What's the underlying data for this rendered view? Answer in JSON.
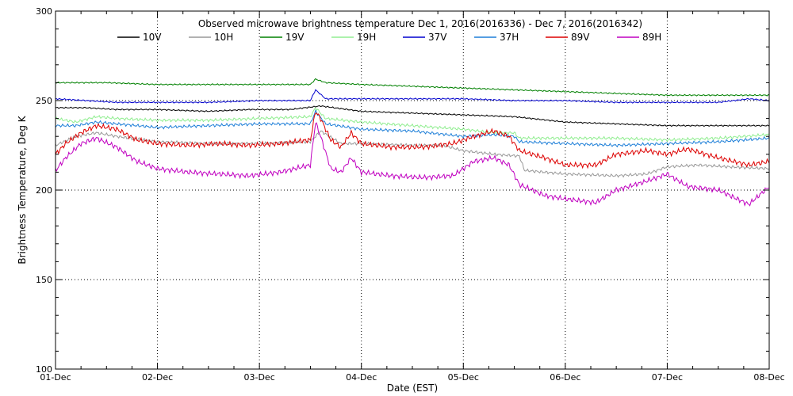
{
  "chart_data": {
    "type": "line",
    "title": "Observed microwave brightness temperature Dec  1, 2016(2016336) - Dec  7, 2016(2016342)",
    "xlabel": "Date (EST)",
    "ylabel": "Brightness Temperature, Deg K",
    "x_ticks": [
      "01-Dec",
      "02-Dec",
      "03-Dec",
      "04-Dec",
      "05-Dec",
      "06-Dec",
      "07-Dec",
      "08-Dec"
    ],
    "x_range_days": [
      0,
      7
    ],
    "ylim": [
      100,
      300
    ],
    "y_ticks": [
      100,
      150,
      200,
      250,
      300
    ],
    "grid": "dotted",
    "legend_position": "top",
    "series": [
      {
        "name": "10V",
        "color": "#000000",
        "x": [
          0,
          0.3,
          0.6,
          1.0,
          1.5,
          1.9,
          2.3,
          2.6,
          3.0,
          3.5,
          4.0,
          4.5,
          5.0,
          5.5,
          6.0,
          6.5,
          7.0
        ],
        "y": [
          246,
          246,
          245,
          245,
          244,
          245,
          245,
          247,
          244,
          243,
          242,
          241,
          238,
          237,
          236,
          236,
          236
        ]
      },
      {
        "name": "10H",
        "color": "#999999",
        "x": [
          0,
          0.2,
          0.4,
          0.6,
          1.0,
          1.5,
          2.0,
          2.5,
          2.6,
          2.8,
          3.0,
          3.5,
          3.8,
          4.0,
          4.3,
          4.55,
          4.6,
          5.0,
          5.5,
          5.8,
          6.0,
          6.3,
          6.6,
          7.0
        ],
        "y": [
          225,
          230,
          232,
          230,
          227,
          226,
          226,
          227,
          233,
          226,
          226,
          225,
          225,
          222,
          220,
          219,
          211,
          209,
          208,
          209,
          213,
          214,
          213,
          212
        ]
      },
      {
        "name": "19V",
        "color": "#008000",
        "x": [
          0,
          0.5,
          1.0,
          1.5,
          2.0,
          2.5,
          2.55,
          2.65,
          3.0,
          3.5,
          4.0,
          4.5,
          5.0,
          5.5,
          6.0,
          6.5,
          6.8,
          7.0
        ],
        "y": [
          260,
          260,
          259,
          259,
          259,
          259,
          262,
          260,
          259,
          258,
          257,
          256,
          255,
          254,
          253,
          253,
          253,
          253
        ]
      },
      {
        "name": "19H",
        "color": "#90ee90",
        "x": [
          0,
          0.2,
          0.4,
          0.6,
          1.0,
          1.5,
          2.0,
          2.5,
          2.55,
          2.65,
          3.0,
          3.5,
          4.0,
          4.3,
          4.5,
          4.55,
          5.0,
          5.5,
          6.0,
          6.5,
          7.0
        ],
        "y": [
          240,
          238,
          241,
          240,
          239,
          239,
          240,
          241,
          246,
          240,
          238,
          236,
          234,
          232,
          232,
          229,
          229,
          229,
          228,
          229,
          231
        ]
      },
      {
        "name": "37V",
        "color": "#0000cd",
        "x": [
          0,
          0.3,
          0.6,
          1.0,
          1.5,
          2.0,
          2.5,
          2.55,
          2.65,
          3.0,
          3.5,
          4.0,
          4.5,
          5.0,
          5.5,
          6.0,
          6.5,
          6.8,
          7.0
        ],
        "y": [
          251,
          250,
          249,
          249,
          249,
          250,
          250,
          256,
          251,
          251,
          251,
          251,
          250,
          250,
          249,
          249,
          249,
          251,
          250
        ]
      },
      {
        "name": "37H",
        "color": "#1e7fd8",
        "x": [
          0,
          0.2,
          0.4,
          0.6,
          1.0,
          1.5,
          2.0,
          2.5,
          2.55,
          2.65,
          3.0,
          3.5,
          4.0,
          4.3,
          4.5,
          4.55,
          5.0,
          5.5,
          6.0,
          6.5,
          7.0
        ],
        "y": [
          236,
          236,
          238,
          237,
          235,
          236,
          237,
          237,
          244,
          237,
          234,
          233,
          230,
          231,
          230,
          227,
          226,
          225,
          226,
          227,
          229
        ]
      },
      {
        "name": "89V",
        "color": "#dd0000",
        "x": [
          0,
          0.1,
          0.25,
          0.4,
          0.6,
          0.8,
          1.0,
          1.3,
          1.6,
          1.9,
          2.2,
          2.5,
          2.55,
          2.6,
          2.7,
          2.8,
          2.9,
          3.0,
          3.3,
          3.6,
          3.9,
          4.1,
          4.3,
          4.45,
          4.55,
          4.8,
          5.0,
          5.3,
          5.5,
          5.8,
          6.0,
          6.2,
          6.5,
          6.8,
          7.0
        ],
        "y": [
          220,
          226,
          232,
          236,
          234,
          228,
          226,
          225,
          226,
          225,
          226,
          228,
          244,
          240,
          228,
          224,
          232,
          226,
          224,
          224,
          226,
          230,
          233,
          230,
          222,
          218,
          214,
          214,
          220,
          222,
          220,
          223,
          218,
          214,
          216
        ]
      },
      {
        "name": "89H",
        "color": "#c000c0",
        "x": [
          0,
          0.1,
          0.25,
          0.4,
          0.6,
          0.8,
          1.0,
          1.3,
          1.6,
          1.9,
          2.2,
          2.5,
          2.55,
          2.6,
          2.7,
          2.8,
          2.9,
          3.0,
          3.3,
          3.6,
          3.9,
          4.1,
          4.3,
          4.45,
          4.55,
          4.8,
          5.0,
          5.3,
          5.5,
          5.8,
          6.0,
          6.2,
          6.5,
          6.8,
          7.0
        ],
        "y": [
          211,
          218,
          226,
          229,
          224,
          216,
          212,
          210,
          209,
          208,
          210,
          214,
          238,
          230,
          212,
          210,
          218,
          210,
          208,
          207,
          208,
          216,
          218,
          214,
          203,
          197,
          195,
          193,
          200,
          205,
          209,
          202,
          200,
          192,
          202
        ]
      }
    ]
  }
}
